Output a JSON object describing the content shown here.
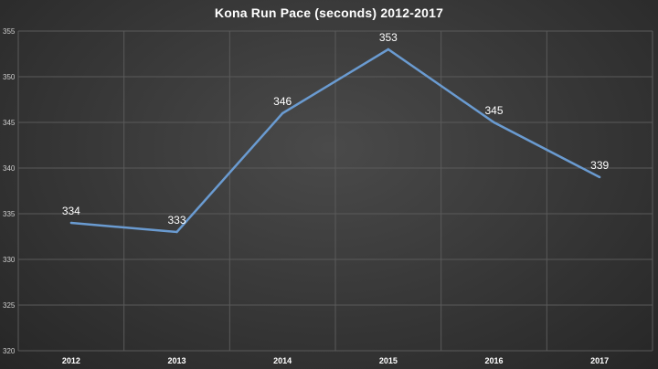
{
  "chart_data": {
    "type": "line",
    "title": "Kona Run Pace (seconds) 2012-2017",
    "xlabel": "",
    "ylabel": "",
    "categories": [
      "2012",
      "2013",
      "2014",
      "2015",
      "2016",
      "2017"
    ],
    "series": [
      {
        "values": [
          334,
          333,
          346,
          353,
          345,
          339
        ],
        "color": "#6a9bd1"
      }
    ],
    "ylim": [
      320,
      355
    ],
    "yticks": [
      "320",
      "325",
      "330",
      "335",
      "340",
      "345",
      "350",
      "355"
    ],
    "data_labels": [
      "334",
      "333",
      "346",
      "353",
      "345",
      "339"
    ],
    "grid": true,
    "legend": "none"
  }
}
